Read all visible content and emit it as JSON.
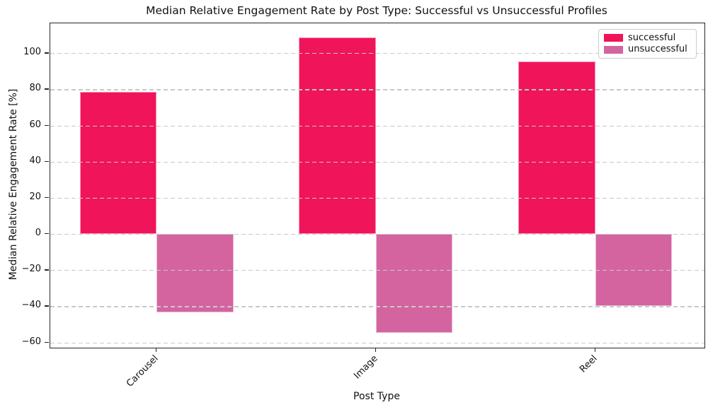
{
  "figure": {
    "title": "Median Relative Engagement Rate by Post Type: Successful vs Unsuccessful Profiles",
    "xlabel": "Post Type",
    "ylabel": "Median Relative Engagement Rate [%]"
  },
  "chart_data": {
    "type": "bar",
    "title": "Median Relative Engagement Rate by Post Type: Successful vs Unsuccessful Profiles",
    "xlabel": "Post Type",
    "ylabel": "Median Relative Engagement Rate [%]",
    "categories": [
      "Carousel",
      "Image",
      "Reel"
    ],
    "series": [
      {
        "name": "successful",
        "color": "#F0145A",
        "values": [
          78.6,
          108.5,
          95.4
        ]
      },
      {
        "name": "unsuccessful",
        "color": "#D464A0",
        "values": [
          -43.2,
          -54.7,
          -40.0
        ]
      }
    ],
    "yticks": [
      100,
      80,
      60,
      40,
      20,
      0,
      -20,
      -40,
      -60
    ],
    "ylim": [
      -62.9,
      116.5
    ],
    "grid": {
      "axis": "y",
      "style": "dashed",
      "color": "#c9c9c9"
    },
    "legend": {
      "position": "upper right",
      "entries": [
        "successful",
        "unsuccessful"
      ]
    },
    "axis_color": "#262626",
    "background": "#ffffff"
  }
}
